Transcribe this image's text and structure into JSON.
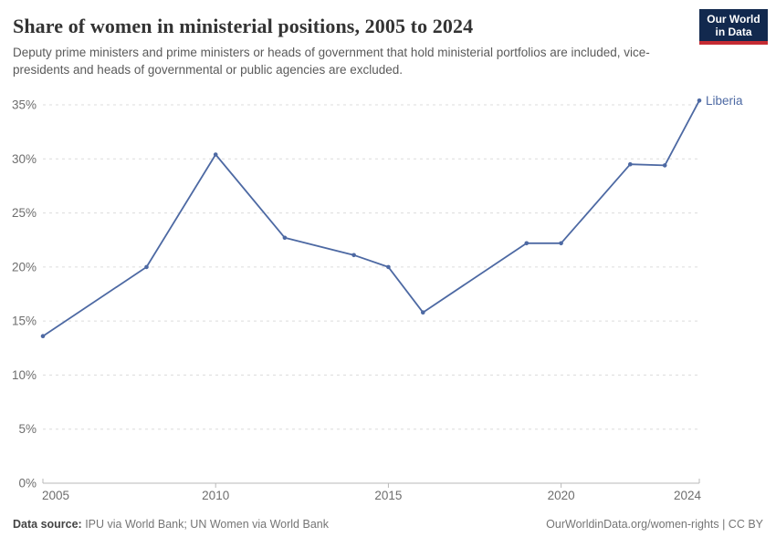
{
  "header": {
    "title": "Share of women in ministerial positions, 2005 to 2024",
    "subtitle": "Deputy prime ministers and prime ministers or heads of government that hold ministerial portfolios are included, vice-presidents and heads of governmental or public agencies are excluded.",
    "logo": {
      "line1": "Our World",
      "line2": "in Data"
    }
  },
  "chart_data": {
    "type": "line",
    "title": "Share of women in ministerial positions, 2005 to 2024",
    "xlabel": "",
    "ylabel": "",
    "xlim": [
      2005,
      2024
    ],
    "ylim": [
      0,
      35
    ],
    "x_ticks": [
      2005,
      2010,
      2015,
      2020,
      2024
    ],
    "y_ticks": [
      0,
      5,
      10,
      15,
      20,
      25,
      30,
      35
    ],
    "y_tick_suffix": "%",
    "grid": "dashed-horizontal",
    "legend_position": "end-of-line",
    "series": [
      {
        "name": "Liberia",
        "color": "#4d69a3",
        "points": [
          {
            "year": 2005,
            "value": 13.6
          },
          {
            "year": 2008,
            "value": 20
          },
          {
            "year": 2010,
            "value": 30.4
          },
          {
            "year": 2012,
            "value": 22.7
          },
          {
            "year": 2014,
            "value": 21.1
          },
          {
            "year": 2015,
            "value": 20
          },
          {
            "year": 2016,
            "value": 15.8
          },
          {
            "year": 2019,
            "value": 22.2
          },
          {
            "year": 2020,
            "value": 22.2
          },
          {
            "year": 2022,
            "value": 29.5
          },
          {
            "year": 2023,
            "value": 29.4
          },
          {
            "year": 2024,
            "value": 35.4
          }
        ]
      }
    ]
  },
  "footer": {
    "source_label": "Data source:",
    "source_value": " IPU via World Bank; UN Women via World Bank",
    "credit": "OurWorldinData.org/women-rights | CC BY"
  },
  "colors": {
    "line": "#4d69a3",
    "grid": "#dcdcdc",
    "axis": "#b9b9b9",
    "tick_text": "#6e6e6e"
  }
}
